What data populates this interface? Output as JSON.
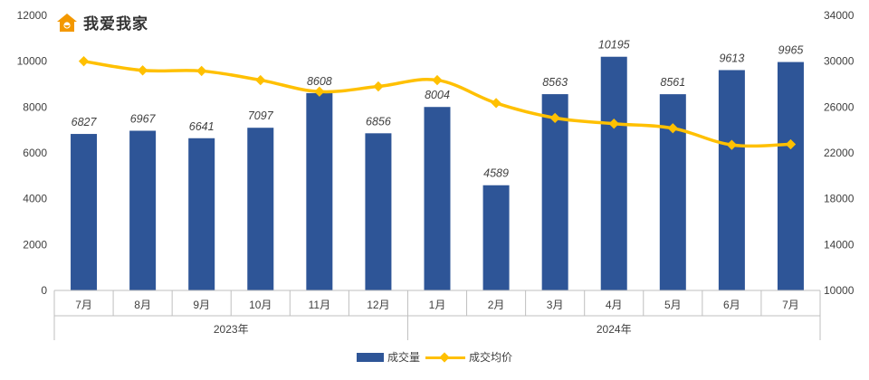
{
  "brand": {
    "name": "我爱我家",
    "icon": "house-logo-icon"
  },
  "colors": {
    "bar": "#2E5597",
    "line": "#FFC000",
    "axis": "#BFBFBF",
    "text": "#404040",
    "logo": "#F39800"
  },
  "chart_data": {
    "type": "bar",
    "categories": [
      "7月",
      "8月",
      "9月",
      "10月",
      "11月",
      "12月",
      "1月",
      "2月",
      "3月",
      "4月",
      "5月",
      "6月",
      "7月"
    ],
    "groups": [
      {
        "label": "2023年",
        "from": 0,
        "to": 5
      },
      {
        "label": "2024年",
        "from": 6,
        "to": 12
      }
    ],
    "series": [
      {
        "name": "成交量",
        "type": "bar",
        "axis": "left",
        "values": [
          6827,
          6967,
          6641,
          7097,
          8608,
          6856,
          8004,
          4589,
          8563,
          10195,
          8561,
          9613,
          9965
        ]
      },
      {
        "name": "成交均价",
        "type": "line",
        "axis": "right",
        "values": [
          30000,
          29200,
          29150,
          28350,
          27350,
          27800,
          28350,
          26350,
          25050,
          24550,
          24150,
          22700,
          22750
        ]
      }
    ],
    "y_left": {
      "min": 0,
      "max": 12000,
      "ticks": [
        0,
        2000,
        4000,
        6000,
        8000,
        10000,
        12000
      ]
    },
    "y_right": {
      "min": 10000,
      "max": 34000,
      "ticks": [
        10000,
        14000,
        18000,
        22000,
        26000,
        30000,
        34000
      ]
    },
    "grid": false,
    "legend": "bottom-center"
  }
}
